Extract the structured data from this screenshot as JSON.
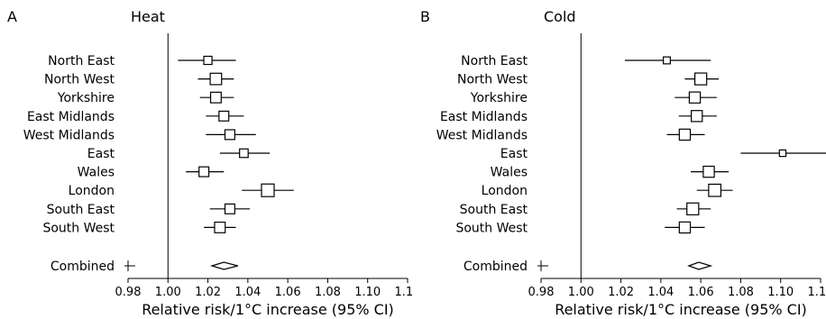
{
  "chart_data": [
    {
      "type": "forest",
      "panel_label": "A",
      "title": "Heat",
      "xlabel": "Relative risk/1°C increase (95% CI)",
      "xlim": [
        0.98,
        1.12
      ],
      "xticks": [
        "0.98",
        "1.00",
        "1.02",
        "1.04",
        "1.06",
        "1.08",
        "1.10",
        "1.12"
      ],
      "reference_line": 1.0,
      "rows": [
        {
          "label": "North East",
          "estimate": 1.02,
          "ci": [
            1.005,
            1.034
          ],
          "weight": 0.45
        },
        {
          "label": "North West",
          "estimate": 1.024,
          "ci": [
            1.015,
            1.033
          ],
          "weight": 0.85
        },
        {
          "label": "Yorkshire",
          "estimate": 1.024,
          "ci": [
            1.016,
            1.033
          ],
          "weight": 0.75
        },
        {
          "label": "East Midlands",
          "estimate": 1.028,
          "ci": [
            1.019,
            1.038
          ],
          "weight": 0.65
        },
        {
          "label": "West Midlands",
          "estimate": 1.031,
          "ci": [
            1.019,
            1.044
          ],
          "weight": 0.65
        },
        {
          "label": "East",
          "estimate": 1.038,
          "ci": [
            1.026,
            1.051
          ],
          "weight": 0.5
        },
        {
          "label": "Wales",
          "estimate": 1.018,
          "ci": [
            1.009,
            1.028
          ],
          "weight": 0.65
        },
        {
          "label": "London",
          "estimate": 1.05,
          "ci": [
            1.037,
            1.063
          ],
          "weight": 1.0
        },
        {
          "label": "South East",
          "estimate": 1.031,
          "ci": [
            1.021,
            1.041
          ],
          "weight": 0.65
        },
        {
          "label": "South West",
          "estimate": 1.026,
          "ci": [
            1.018,
            1.034
          ],
          "weight": 0.75
        }
      ],
      "combined": {
        "label": "Combined",
        "estimate": 1.028,
        "ci": [
          1.022,
          1.035
        ]
      }
    },
    {
      "type": "forest",
      "panel_label": "B",
      "title": "Cold",
      "xlabel": "Relative risk/1°C increase (95% CI)",
      "xlim": [
        0.98,
        1.12
      ],
      "xticks": [
        "0.98",
        "1.00",
        "1.02",
        "1.04",
        "1.06",
        "1.08",
        "1.10",
        "1.12"
      ],
      "reference_line": 1.0,
      "rows": [
        {
          "label": "North East",
          "estimate": 1.043,
          "ci": [
            1.022,
            1.065
          ],
          "weight": 0.3
        },
        {
          "label": "North West",
          "estimate": 1.06,
          "ci": [
            1.052,
            1.069
          ],
          "weight": 0.9
        },
        {
          "label": "Yorkshire",
          "estimate": 1.057,
          "ci": [
            1.047,
            1.068
          ],
          "weight": 0.8
        },
        {
          "label": "East Midlands",
          "estimate": 1.058,
          "ci": [
            1.049,
            1.068
          ],
          "weight": 0.8
        },
        {
          "label": "West Midlands",
          "estimate": 1.052,
          "ci": [
            1.043,
            1.062
          ],
          "weight": 0.8
        },
        {
          "label": "East",
          "estimate": 1.101,
          "ci": [
            1.08,
            1.123
          ],
          "weight": 0.25
        },
        {
          "label": "Wales",
          "estimate": 1.064,
          "ci": [
            1.055,
            1.074
          ],
          "weight": 0.8
        },
        {
          "label": "London",
          "estimate": 1.067,
          "ci": [
            1.058,
            1.076
          ],
          "weight": 0.95
        },
        {
          "label": "South East",
          "estimate": 1.056,
          "ci": [
            1.048,
            1.065
          ],
          "weight": 0.9
        },
        {
          "label": "South West",
          "estimate": 1.052,
          "ci": [
            1.042,
            1.062
          ],
          "weight": 0.8
        }
      ],
      "combined": {
        "label": "Combined",
        "estimate": 1.059,
        "ci": [
          1.054,
          1.065
        ]
      }
    }
  ]
}
